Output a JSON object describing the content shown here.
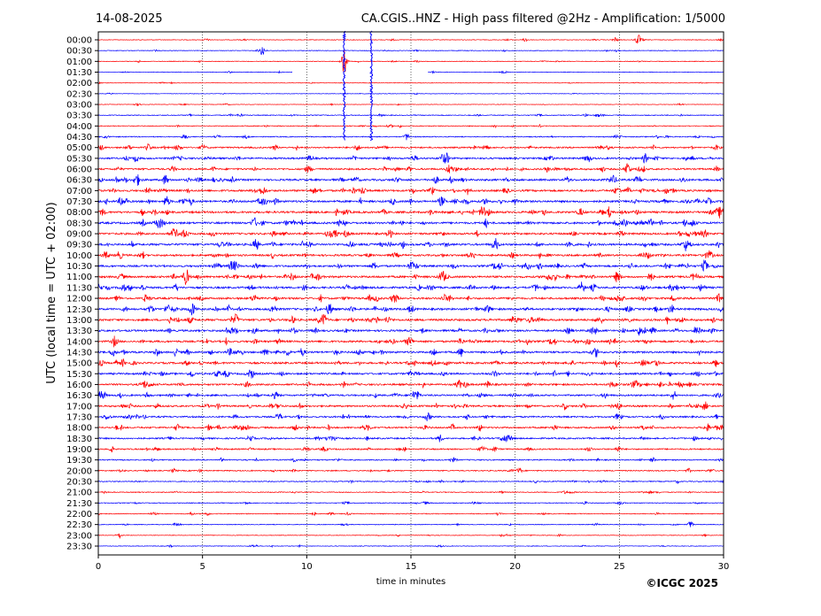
{
  "chart_data": {
    "type": "line",
    "title_left": "14-08-2025",
    "title_right": "CA.CGIS..HNZ - High pass filtered @2Hz - Amplification: 1/5000",
    "xlabel": "time in minutes",
    "ylabel": "UTC (local time = UTC + 02:00)",
    "copyright": "©ICGC 2025",
    "xlim": [
      0,
      30
    ],
    "x_ticks": [
      "0",
      "5",
      "10",
      "15",
      "20",
      "25",
      "30"
    ],
    "x_tick_values": [
      0,
      5,
      10,
      15,
      20,
      25,
      30
    ],
    "grid": "vertical dotted at each x tick",
    "trace_colors": [
      "#ff0000",
      "#0000ff"
    ],
    "rows": [
      "00:00",
      "00:30",
      "01:00",
      "01:30",
      "02:00",
      "02:30",
      "03:00",
      "03:30",
      "04:00",
      "04:30",
      "05:00",
      "05:30",
      "06:00",
      "06:30",
      "07:00",
      "07:30",
      "08:00",
      "08:30",
      "09:00",
      "09:30",
      "10:00",
      "10:30",
      "11:00",
      "11:30",
      "12:00",
      "12:30",
      "13:00",
      "13:30",
      "14:00",
      "14:30",
      "15:00",
      "15:30",
      "16:00",
      "16:30",
      "17:00",
      "17:30",
      "18:00",
      "18:30",
      "19:00",
      "19:30",
      "20:00",
      "20:30",
      "21:00",
      "21:30",
      "22:00",
      "22:30",
      "23:00",
      "23:30"
    ],
    "row_noise": [
      0.6,
      0.6,
      0.6,
      0.6,
      0.5,
      0.5,
      0.5,
      0.8,
      0.8,
      0.9,
      1.4,
      1.6,
      1.6,
      1.8,
      1.8,
      1.9,
      1.9,
      1.9,
      1.8,
      1.9,
      1.8,
      1.8,
      1.9,
      1.8,
      1.8,
      1.9,
      1.9,
      1.8,
      1.8,
      1.8,
      1.8,
      1.7,
      1.7,
      1.6,
      1.6,
      1.5,
      1.5,
      1.4,
      1.3,
      1.1,
      1.0,
      0.9,
      0.8,
      0.8,
      0.8,
      0.7,
      0.6,
      0.6
    ],
    "events": [
      {
        "row": "00:00",
        "minute": 25.9,
        "amplitude": 6
      },
      {
        "row": "00:00",
        "minute": 20.5,
        "amplitude": 2
      },
      {
        "row": "00:00",
        "minute": 24.8,
        "amplitude": 2
      },
      {
        "row": "00:30",
        "minute": 7.9,
        "amplitude": 6
      },
      {
        "row": "01:00",
        "minute": 11.8,
        "amplitude": 14
      },
      {
        "row": "01:30",
        "minute": 13.1,
        "amplitude": 8
      },
      {
        "row": "04:30",
        "minute": 14.8,
        "amplitude": 4
      },
      {
        "row": "05:00",
        "minute": 2.4,
        "amplitude": 4
      },
      {
        "row": "05:00",
        "minute": 18.6,
        "amplitude": 4
      },
      {
        "row": "05:30",
        "minute": 1.8,
        "amplitude": 4
      },
      {
        "row": "05:30",
        "minute": 16.5,
        "amplitude": 4
      },
      {
        "row": "06:00",
        "minute": 16.9,
        "amplitude": 4
      },
      {
        "row": "06:00",
        "minute": 25.4,
        "amplitude": 5
      },
      {
        "row": "06:30",
        "minute": 16.2,
        "amplitude": 4
      },
      {
        "row": "07:00",
        "minute": 16.0,
        "amplitude": 4
      },
      {
        "row": "07:30",
        "minute": 1.1,
        "amplitude": 5
      },
      {
        "row": "07:30",
        "minute": 3.3,
        "amplitude": 5
      },
      {
        "row": "07:30",
        "minute": 16.5,
        "amplitude": 5
      },
      {
        "row": "08:00",
        "minute": 18.4,
        "amplitude": 4
      },
      {
        "row": "08:00",
        "minute": 29.9,
        "amplitude": 4
      },
      {
        "row": "08:30",
        "minute": 26.5,
        "amplitude": 4
      },
      {
        "row": "09:30",
        "minute": 19.1,
        "amplitude": 4
      },
      {
        "row": "09:30",
        "minute": 28.2,
        "amplitude": 5
      },
      {
        "row": "10:30",
        "minute": 15.0,
        "amplitude": 5
      },
      {
        "row": "10:30",
        "minute": 29.1,
        "amplitude": 7
      },
      {
        "row": "11:00",
        "minute": 4.2,
        "amplitude": 6
      },
      {
        "row": "11:00",
        "minute": 16.5,
        "amplitude": 5
      },
      {
        "row": "11:00",
        "minute": 26.5,
        "amplitude": 5
      },
      {
        "row": "11:30",
        "minute": 9.9,
        "amplitude": 4
      },
      {
        "row": "11:30",
        "minute": 23.2,
        "amplitude": 6
      },
      {
        "row": "12:00",
        "minute": 29.8,
        "amplitude": 6
      },
      {
        "row": "12:00",
        "minute": 16.6,
        "amplitude": 4
      },
      {
        "row": "12:30",
        "minute": 3.3,
        "amplitude": 5
      },
      {
        "row": "12:30",
        "minute": 15.0,
        "amplitude": 5
      },
      {
        "row": "13:00",
        "minute": 6.6,
        "amplitude": 6
      },
      {
        "row": "13:00",
        "minute": 19.9,
        "amplitude": 4
      },
      {
        "row": "14:00",
        "minute": 17.4,
        "amplitude": 4
      },
      {
        "row": "14:30",
        "minute": 2.8,
        "amplitude": 4
      },
      {
        "row": "14:30",
        "minute": 17.4,
        "amplitude": 5
      },
      {
        "row": "14:30",
        "minute": 28.9,
        "amplitude": 4
      },
      {
        "row": "15:00",
        "minute": 29.6,
        "amplitude": 4
      },
      {
        "row": "16:00",
        "minute": 17.3,
        "amplitude": 5
      },
      {
        "row": "16:30",
        "minute": 0.1,
        "amplitude": 6
      },
      {
        "row": "16:30",
        "minute": 27.6,
        "amplitude": 5
      },
      {
        "row": "17:00",
        "minute": 29.1,
        "amplitude": 5
      },
      {
        "row": "18:00",
        "minute": 3.8,
        "amplitude": 4
      },
      {
        "row": "18:00",
        "minute": 18.3,
        "amplitude": 4
      },
      {
        "row": "18:00",
        "minute": 29.2,
        "amplitude": 5
      },
      {
        "row": "18:30",
        "minute": 16.4,
        "amplitude": 4
      },
      {
        "row": "22:30",
        "minute": 28.4,
        "amplitude": 4
      },
      {
        "row": "23:00",
        "minute": 1.0,
        "amplitude": 3
      }
    ],
    "spikes": [
      {
        "minute": 11.8,
        "from_row": "00:00",
        "to_row": "04:30"
      },
      {
        "minute": 13.1,
        "from_row": "00:00",
        "to_row": "04:30"
      }
    ],
    "gaps": [
      {
        "row": "01:30",
        "from_minute": 9.3,
        "to_minute": 15.8
      }
    ]
  }
}
